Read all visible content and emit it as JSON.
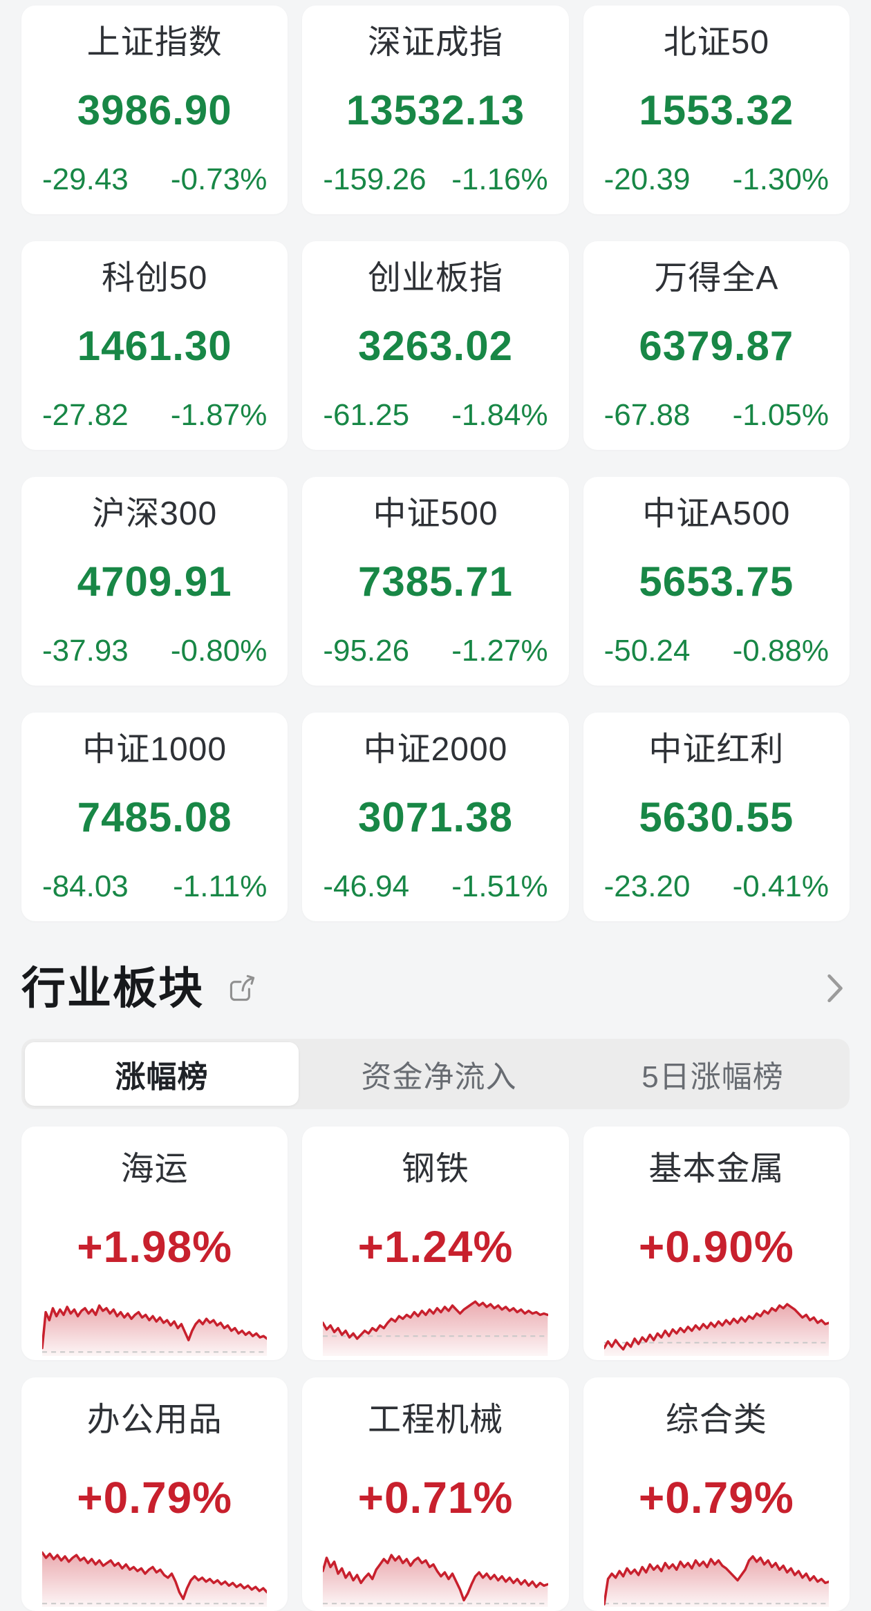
{
  "colors": {
    "down_green": "#188746",
    "up_red": "#c8202d",
    "page_bg": "#f4f5f6",
    "card_bg": "#ffffff",
    "tab_bg": "#ececec",
    "dash_gray": "#c8c8c8",
    "icon_gray": "#909090"
  },
  "index_cards": [
    {
      "name": "上证指数",
      "value": "3986.90",
      "change": "-29.43",
      "change_pct": "-0.73%"
    },
    {
      "name": "深证成指",
      "value": "13532.13",
      "change": "-159.26",
      "change_pct": "-1.16%"
    },
    {
      "name": "北证50",
      "value": "1553.32",
      "change": "-20.39",
      "change_pct": "-1.30%"
    },
    {
      "name": "科创50",
      "value": "1461.30",
      "change": "-27.82",
      "change_pct": "-1.87%"
    },
    {
      "name": "创业板指",
      "value": "3263.02",
      "change": "-61.25",
      "change_pct": "-1.84%"
    },
    {
      "name": "万得全A",
      "value": "6379.87",
      "change": "-67.88",
      "change_pct": "-1.05%"
    },
    {
      "name": "沪深300",
      "value": "4709.91",
      "change": "-37.93",
      "change_pct": "-0.80%"
    },
    {
      "name": "中证500",
      "value": "7385.71",
      "change": "-95.26",
      "change_pct": "-1.27%"
    },
    {
      "name": "中证A500",
      "value": "5653.75",
      "change": "-50.24",
      "change_pct": "-0.88%"
    },
    {
      "name": "中证1000",
      "value": "7485.08",
      "change": "-84.03",
      "change_pct": "-1.11%"
    },
    {
      "name": "中证2000",
      "value": "3071.38",
      "change": "-46.94",
      "change_pct": "-1.51%"
    },
    {
      "name": "中证红利",
      "value": "5630.55",
      "change": "-23.20",
      "change_pct": "-0.41%"
    }
  ],
  "sector_section": {
    "title": "行业板块",
    "tabs": [
      {
        "label": "涨幅榜",
        "active": true
      },
      {
        "label": "资金净流入",
        "active": false
      },
      {
        "label": "5日涨幅榜",
        "active": false
      }
    ],
    "cards": [
      {
        "name": "海运",
        "change_pct": "+1.98%",
        "baseline": 94,
        "spark": [
          88,
          34,
          46,
          28,
          40,
          30,
          38,
          26,
          36,
          30,
          40,
          32,
          28,
          36,
          30,
          38,
          24,
          32,
          28,
          36,
          30,
          40,
          34,
          42,
          36,
          44,
          38,
          34,
          42,
          38,
          46,
          40,
          48,
          42,
          50,
          46,
          54,
          48,
          58,
          52,
          64,
          76,
          62,
          52,
          46,
          52,
          44,
          50,
          46,
          54,
          50,
          58,
          54,
          62,
          58,
          66,
          62,
          68,
          64,
          70,
          66,
          72,
          70,
          74
        ]
      },
      {
        "name": "钢铁",
        "change_pct": "+1.24%",
        "baseline": 70,
        "spark": [
          50,
          60,
          54,
          64,
          58,
          68,
          62,
          72,
          66,
          74,
          68,
          62,
          66,
          58,
          62,
          54,
          58,
          50,
          44,
          48,
          40,
          44,
          38,
          42,
          34,
          40,
          32,
          38,
          30,
          36,
          28,
          34,
          26,
          32,
          24,
          30,
          36,
          30,
          26,
          22,
          18,
          24,
          20,
          26,
          22,
          28,
          24,
          30,
          26,
          32,
          28,
          34,
          30,
          36,
          32,
          36,
          34,
          38,
          36,
          38
        ]
      },
      {
        "name": "基本金属",
        "change_pct": "+0.90%",
        "baseline": 80,
        "spark": [
          88,
          78,
          86,
          76,
          84,
          90,
          80,
          86,
          74,
          82,
          72,
          78,
          68,
          76,
          66,
          72,
          62,
          70,
          60,
          66,
          58,
          64,
          56,
          62,
          54,
          60,
          52,
          58,
          50,
          56,
          48,
          54,
          46,
          52,
          44,
          50,
          42,
          48,
          40,
          44,
          36,
          40,
          32,
          36,
          28,
          32,
          24,
          28,
          22,
          26,
          30,
          36,
          42,
          38,
          46,
          42,
          50,
          46,
          52,
          50
        ]
      },
      {
        "name": "办公用品",
        "change_pct": "+0.79%",
        "baseline": 95,
        "spark": [
          18,
          26,
          20,
          28,
          22,
          30,
          24,
          32,
          26,
          22,
          30,
          26,
          34,
          28,
          36,
          30,
          38,
          34,
          30,
          38,
          34,
          42,
          36,
          44,
          40,
          46,
          42,
          50,
          44,
          40,
          48,
          44,
          52,
          56,
          50,
          62,
          78,
          88,
          72,
          60,
          54,
          60,
          56,
          62,
          58,
          64,
          60,
          66,
          62,
          68,
          64,
          70,
          66,
          72,
          68,
          74,
          70,
          76,
          72,
          78
        ]
      },
      {
        "name": "工程机械",
        "change_pct": "+0.71%",
        "baseline": 95,
        "spark": [
          46,
          26,
          40,
          32,
          50,
          42,
          56,
          48,
          60,
          52,
          64,
          56,
          50,
          58,
          44,
          36,
          28,
          34,
          22,
          30,
          24,
          34,
          28,
          38,
          30,
          26,
          34,
          30,
          40,
          36,
          46,
          54,
          48,
          58,
          50,
          62,
          74,
          90,
          80,
          66,
          54,
          48,
          56,
          50,
          58,
          52,
          60,
          54,
          62,
          56,
          64,
          58,
          66,
          60,
          68,
          62,
          70,
          64,
          68,
          66
        ]
      },
      {
        "name": "综合类",
        "change_pct": "+0.79%",
        "baseline": 95,
        "spark": [
          96,
          58,
          50,
          56,
          46,
          54,
          42,
          50,
          44,
          52,
          40,
          48,
          36,
          44,
          38,
          46,
          34,
          42,
          36,
          44,
          32,
          40,
          34,
          42,
          30,
          38,
          32,
          40,
          28,
          36,
          30,
          38,
          42,
          48,
          54,
          60,
          52,
          44,
          30,
          24,
          32,
          26,
          36,
          30,
          40,
          34,
          44,
          38,
          48,
          42,
          52,
          46,
          56,
          50,
          60,
          54,
          62,
          58,
          64,
          62
        ]
      }
    ]
  }
}
